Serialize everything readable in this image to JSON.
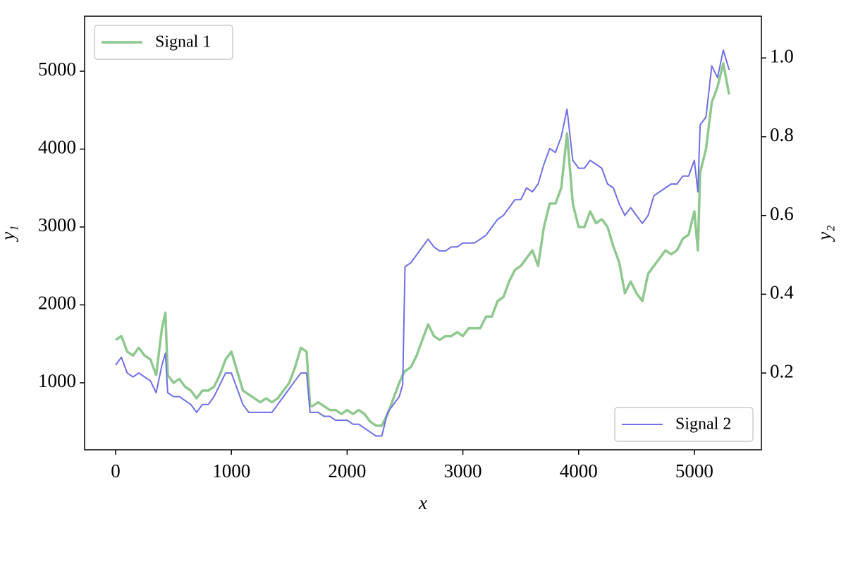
{
  "chart_data": {
    "type": "line",
    "x_label": "x",
    "y_label": "y₁",
    "y2_label": "y₂",
    "x": [
      0,
      50,
      100,
      150,
      200,
      250,
      300,
      350,
      400,
      430,
      450,
      500,
      550,
      600,
      650,
      700,
      750,
      800,
      850,
      900,
      950,
      1000,
      1050,
      1100,
      1150,
      1200,
      1250,
      1300,
      1350,
      1400,
      1450,
      1500,
      1550,
      1600,
      1650,
      1680,
      1700,
      1750,
      1800,
      1850,
      1900,
      1950,
      2000,
      2050,
      2100,
      2150,
      2200,
      2250,
      2300,
      2350,
      2400,
      2450,
      2480,
      2500,
      2550,
      2600,
      2650,
      2700,
      2750,
      2800,
      2850,
      2900,
      2950,
      3000,
      3050,
      3100,
      3150,
      3200,
      3250,
      3300,
      3350,
      3400,
      3450,
      3500,
      3550,
      3600,
      3650,
      3700,
      3750,
      3800,
      3850,
      3900,
      3950,
      4000,
      4050,
      4100,
      4150,
      4200,
      4250,
      4300,
      4350,
      4400,
      4450,
      4500,
      4550,
      4600,
      4650,
      4700,
      4750,
      4800,
      4850,
      4900,
      4950,
      5000,
      5030,
      5050,
      5100,
      5150,
      5200,
      5250,
      5300
    ],
    "series": [
      {
        "name": "Signal 1",
        "color": "#8fc88f",
        "axis": "y",
        "legend": "upper left",
        "values": [
          1550,
          1600,
          1400,
          1350,
          1450,
          1350,
          1300,
          1100,
          1700,
          1900,
          1100,
          1000,
          1050,
          950,
          900,
          800,
          900,
          900,
          950,
          1100,
          1300,
          1400,
          1150,
          900,
          850,
          800,
          750,
          800,
          750,
          800,
          900,
          1000,
          1200,
          1450,
          1400,
          700,
          700,
          750,
          700,
          650,
          650,
          600,
          650,
          600,
          650,
          600,
          500,
          450,
          450,
          600,
          800,
          1000,
          1100,
          1150,
          1200,
          1350,
          1550,
          1750,
          1600,
          1550,
          1600,
          1600,
          1650,
          1600,
          1700,
          1700,
          1700,
          1850,
          1850,
          2050,
          2100,
          2300,
          2450,
          2500,
          2600,
          2700,
          2500,
          3000,
          3300,
          3300,
          3500,
          4200,
          3300,
          3000,
          3000,
          3200,
          3050,
          3100,
          3000,
          2750,
          2550,
          2150,
          2300,
          2150,
          2050,
          2400,
          2500,
          2600,
          2700,
          2650,
          2700,
          2850,
          2900,
          3200,
          2700,
          3700,
          4000,
          4600,
          4800,
          5100,
          4700
        ]
      },
      {
        "name": "Signal 2",
        "color": "#6f6fe6",
        "axis": "y2",
        "legend": "lower right",
        "values": [
          0.22,
          0.24,
          0.2,
          0.19,
          0.2,
          0.19,
          0.18,
          0.15,
          0.22,
          0.25,
          0.15,
          0.14,
          0.14,
          0.13,
          0.12,
          0.1,
          0.12,
          0.12,
          0.14,
          0.17,
          0.2,
          0.2,
          0.16,
          0.12,
          0.1,
          0.1,
          0.1,
          0.1,
          0.1,
          0.12,
          0.14,
          0.16,
          0.18,
          0.2,
          0.2,
          0.1,
          0.1,
          0.1,
          0.09,
          0.09,
          0.08,
          0.08,
          0.08,
          0.07,
          0.07,
          0.06,
          0.05,
          0.04,
          0.04,
          0.1,
          0.12,
          0.14,
          0.17,
          0.47,
          0.48,
          0.5,
          0.52,
          0.54,
          0.52,
          0.51,
          0.51,
          0.52,
          0.52,
          0.53,
          0.53,
          0.53,
          0.54,
          0.55,
          0.57,
          0.59,
          0.6,
          0.62,
          0.64,
          0.64,
          0.67,
          0.66,
          0.68,
          0.73,
          0.77,
          0.76,
          0.8,
          0.87,
          0.74,
          0.72,
          0.72,
          0.74,
          0.73,
          0.72,
          0.68,
          0.67,
          0.63,
          0.6,
          0.62,
          0.6,
          0.58,
          0.6,
          0.65,
          0.66,
          0.67,
          0.68,
          0.68,
          0.7,
          0.7,
          0.74,
          0.66,
          0.83,
          0.85,
          0.98,
          0.95,
          1.02,
          0.97
        ]
      }
    ],
    "xlim": [
      -268,
      5579
    ],
    "xticks": [
      0,
      1000,
      2000,
      3000,
      4000,
      5000
    ],
    "ylim": [
      140,
      5706
    ],
    "yticks": [
      1000,
      2000,
      3000,
      4000,
      5000
    ],
    "y2lim": [
      0.005,
      1.106
    ],
    "y2ticks": [
      0.2,
      0.4,
      0.6,
      0.8,
      {
        "value": 1,
        "label": "1.0"
      }
    ]
  }
}
